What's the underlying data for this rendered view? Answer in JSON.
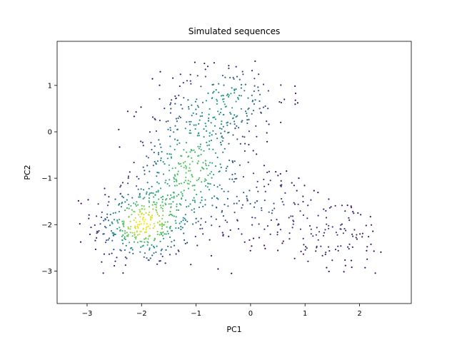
{
  "chart_data": {
    "type": "scatter",
    "title": "Simulated sequences",
    "xlabel": "PC1",
    "ylabel": "PC2",
    "xlim": [
      -3.55,
      2.95
    ],
    "ylim": [
      -3.7,
      1.95
    ],
    "xticks": [
      -3,
      -2,
      -1,
      0,
      1,
      2
    ],
    "yticks": [
      -3,
      -2,
      -1,
      0,
      1
    ],
    "grid": false,
    "legend": "none",
    "colormap": "viridis",
    "color_meaning": "point density",
    "clusters": [
      {
        "cx": -2.0,
        "cy": -2.0,
        "sx": 0.45,
        "sy": 0.45,
        "n": 380,
        "peak_density": 1.0
      },
      {
        "cx": -1.1,
        "cy": -0.8,
        "sx": 0.55,
        "sy": 0.75,
        "n": 420,
        "peak_density": 0.8
      },
      {
        "cx": -0.4,
        "cy": 0.7,
        "sx": 0.55,
        "sy": 0.45,
        "n": 170,
        "peak_density": 0.55
      },
      {
        "cx": 1.5,
        "cy": -2.2,
        "sx": 0.55,
        "sy": 0.45,
        "n": 120,
        "peak_density": 0.2
      },
      {
        "cx": 0.3,
        "cy": -1.6,
        "sx": 0.5,
        "sy": 0.45,
        "n": 90,
        "peak_density": 0.25
      }
    ],
    "point_count": 1180
  }
}
